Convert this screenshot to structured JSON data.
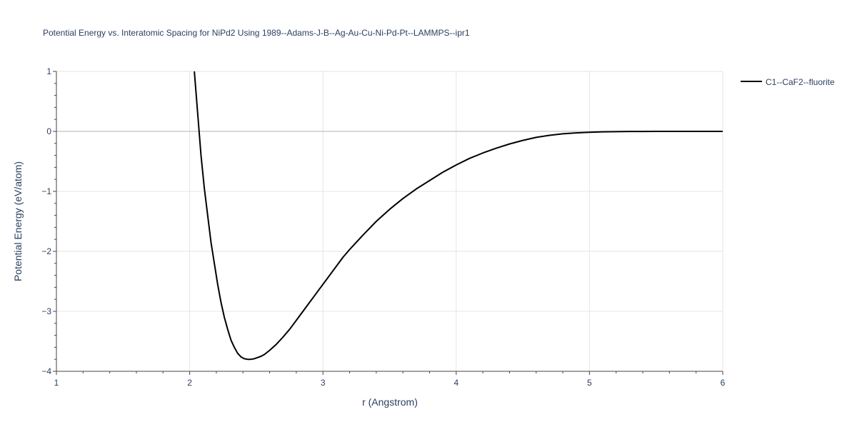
{
  "chart_data": {
    "type": "line",
    "title": "Potential Energy vs. Interatomic Spacing for NiPd2 Using 1989--Adams-J-B--Ag-Au-Cu-Ni-Pd-Pt--LAMMPS--ipr1",
    "xlabel": "r (Angstrom)",
    "ylabel": "Potential Energy (eV/atom)",
    "xlim": [
      1,
      6
    ],
    "ylim": [
      -4,
      1
    ],
    "xticks": [
      1,
      2,
      3,
      4,
      5,
      6
    ],
    "xtick_labels": [
      "1",
      "2",
      "3",
      "4",
      "5",
      "6"
    ],
    "yticks": [
      1,
      0,
      -1,
      -2,
      -3,
      -4
    ],
    "ytick_labels": [
      "1",
      "0",
      "−1",
      "−2",
      "−3",
      "−4"
    ],
    "grid": true,
    "legend_position": "top-right",
    "series": [
      {
        "name": "C1--CaF2--fluorite",
        "color": "#000000",
        "x": [
          2.035,
          2.06,
          2.085,
          2.11,
          2.135,
          2.16,
          2.185,
          2.21,
          2.235,
          2.26,
          2.285,
          2.31,
          2.335,
          2.36,
          2.385,
          2.41,
          2.435,
          2.46,
          2.485,
          2.51,
          2.535,
          2.56,
          2.6,
          2.65,
          2.7,
          2.75,
          2.8,
          2.85,
          2.9,
          2.95,
          3.0,
          3.05,
          3.1,
          3.15,
          3.2,
          3.3,
          3.4,
          3.5,
          3.6,
          3.7,
          3.8,
          3.9,
          4.0,
          4.1,
          4.2,
          4.3,
          4.4,
          4.5,
          4.6,
          4.7,
          4.8,
          4.9,
          5.0,
          5.1,
          5.2,
          5.3,
          5.4,
          5.5,
          5.6,
          5.7,
          5.8,
          5.9,
          6.0
        ],
        "y": [
          1.0,
          0.3,
          -0.4,
          -0.95,
          -1.4,
          -1.85,
          -2.2,
          -2.55,
          -2.85,
          -3.1,
          -3.3,
          -3.48,
          -3.6,
          -3.7,
          -3.76,
          -3.79,
          -3.8,
          -3.8,
          -3.79,
          -3.77,
          -3.75,
          -3.72,
          -3.65,
          -3.55,
          -3.43,
          -3.3,
          -3.15,
          -3.0,
          -2.85,
          -2.7,
          -2.55,
          -2.4,
          -2.25,
          -2.1,
          -1.97,
          -1.73,
          -1.5,
          -1.3,
          -1.12,
          -0.96,
          -0.82,
          -0.68,
          -0.56,
          -0.45,
          -0.36,
          -0.28,
          -0.21,
          -0.15,
          -0.1,
          -0.065,
          -0.04,
          -0.025,
          -0.015,
          -0.008,
          -0.004,
          -0.002,
          -0.001,
          0.0,
          0.0,
          0.0,
          0.0,
          0.0,
          0.0
        ]
      }
    ]
  }
}
